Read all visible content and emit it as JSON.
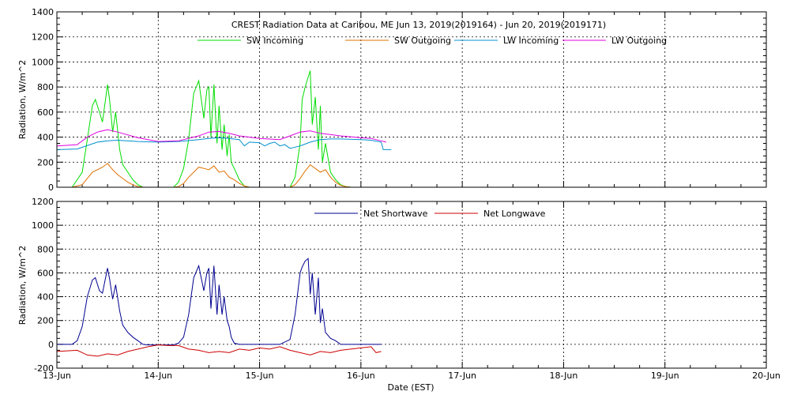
{
  "title": "CREST Radiation Data at Caribou, ME   Jun 13, 2019(2019164) - Jun 20, 2019(2019171)",
  "xlabel": "Date (EST)",
  "x_ticks": [
    "13-Jun",
    "14-Jun",
    "15-Jun",
    "16-Jun",
    "17-Jun",
    "18-Jun",
    "19-Jun",
    "20-Jun"
  ],
  "chart_data": [
    {
      "type": "line",
      "ylabel": "Radiation, W/m^2",
      "xlim": [
        0,
        7
      ],
      "ylim": [
        0,
        1400
      ],
      "y_ticks": [
        "0",
        "200",
        "400",
        "600",
        "800",
        "1000",
        "1200",
        "1400"
      ],
      "grid": true,
      "legend": "top",
      "series": [
        {
          "name": "SW Incoming",
          "color": "#00dd00",
          "x": [
            0.15,
            0.25,
            0.3,
            0.35,
            0.38,
            0.42,
            0.45,
            0.5,
            0.52,
            0.55,
            0.58,
            0.62,
            0.65,
            0.7,
            0.75,
            0.8,
            0.85,
            0.88,
            1.0,
            1.15,
            1.2,
            1.25,
            1.3,
            1.35,
            1.4,
            1.45,
            1.48,
            1.5,
            1.52,
            1.55,
            1.58,
            1.6,
            1.63,
            1.65,
            1.68,
            1.7,
            1.72,
            1.75,
            1.8,
            1.85,
            1.9,
            2.0,
            2.1,
            2.2,
            2.3,
            2.35,
            2.4,
            2.42,
            2.45,
            2.48,
            2.5,
            2.52,
            2.55,
            2.58,
            2.6,
            2.62,
            2.65,
            2.7,
            2.75,
            2.8,
            2.85,
            2.9,
            3.0,
            3.1,
            3.2
          ],
          "y": [
            0,
            120,
            380,
            650,
            700,
            600,
            520,
            820,
            700,
            440,
            600,
            300,
            180,
            120,
            60,
            20,
            0,
            0,
            0,
            0,
            40,
            150,
            380,
            750,
            850,
            550,
            780,
            800,
            400,
            820,
            350,
            650,
            300,
            500,
            250,
            420,
            200,
            150,
            60,
            10,
            0,
            0,
            0,
            0,
            0,
            80,
            350,
            700,
            800,
            880,
            930,
            500,
            720,
            300,
            650,
            200,
            350,
            120,
            60,
            20,
            5,
            0,
            0,
            0,
            0
          ]
        },
        {
          "name": "SW Outgoing",
          "color": "#e07000",
          "x": [
            0.15,
            0.25,
            0.3,
            0.35,
            0.4,
            0.45,
            0.5,
            0.55,
            0.6,
            0.65,
            0.7,
            0.75,
            0.8,
            0.85,
            0.88,
            1.0,
            1.15,
            1.2,
            1.25,
            1.3,
            1.35,
            1.4,
            1.45,
            1.5,
            1.55,
            1.6,
            1.65,
            1.7,
            1.75,
            1.8,
            1.85,
            1.9,
            2.0,
            2.1,
            2.2,
            2.3,
            2.35,
            2.4,
            2.45,
            2.5,
            2.55,
            2.6,
            2.65,
            2.7,
            2.75,
            2.8,
            2.85,
            2.9,
            3.0,
            3.1,
            3.2
          ],
          "y": [
            0,
            20,
            70,
            120,
            140,
            160,
            190,
            140,
            100,
            70,
            40,
            20,
            5,
            0,
            0,
            0,
            0,
            5,
            30,
            80,
            120,
            160,
            150,
            140,
            170,
            120,
            130,
            80,
            60,
            30,
            10,
            0,
            0,
            0,
            0,
            0,
            20,
            70,
            130,
            180,
            150,
            120,
            140,
            80,
            40,
            15,
            5,
            0,
            0,
            0,
            0
          ]
        },
        {
          "name": "LW Incoming",
          "color": "#0090d0",
          "x": [
            0,
            0.2,
            0.4,
            0.5,
            0.6,
            0.8,
            1.0,
            1.2,
            1.4,
            1.5,
            1.6,
            1.7,
            1.8,
            1.85,
            1.9,
            2.0,
            2.05,
            2.1,
            2.15,
            2.2,
            2.25,
            2.3,
            2.35,
            2.4,
            2.5,
            2.6,
            2.7,
            2.8,
            3.0,
            3.1,
            3.2,
            3.22,
            3.3
          ],
          "y": [
            300,
            305,
            360,
            370,
            375,
            365,
            360,
            365,
            380,
            390,
            395,
            390,
            380,
            330,
            360,
            355,
            330,
            350,
            360,
            330,
            340,
            310,
            320,
            330,
            360,
            380,
            385,
            385,
            380,
            375,
            360,
            300,
            300
          ]
        },
        {
          "name": "LW Outgoing",
          "color": "#e000e0",
          "x": [
            0,
            0.2,
            0.3,
            0.4,
            0.5,
            0.6,
            0.8,
            1.0,
            1.2,
            1.4,
            1.5,
            1.6,
            1.7,
            1.8,
            2.0,
            2.2,
            2.3,
            2.4,
            2.5,
            2.6,
            2.8,
            3.0,
            3.1,
            3.2,
            3.25
          ],
          "y": [
            330,
            340,
            400,
            440,
            460,
            440,
            395,
            365,
            370,
            410,
            440,
            445,
            430,
            410,
            390,
            380,
            410,
            440,
            450,
            430,
            410,
            395,
            390,
            370,
            360
          ]
        }
      ]
    },
    {
      "type": "line",
      "ylabel": "Radiation, W/m^2",
      "xlim": [
        0,
        7
      ],
      "ylim": [
        -200,
        1200
      ],
      "y_ticks": [
        "-200",
        "0",
        "200",
        "400",
        "600",
        "800",
        "1000",
        "1200"
      ],
      "grid": true,
      "legend": "top",
      "series": [
        {
          "name": "Net Shortwave",
          "color": "#000090",
          "x": [
            0,
            0.15,
            0.2,
            0.25,
            0.3,
            0.35,
            0.38,
            0.42,
            0.45,
            0.5,
            0.52,
            0.55,
            0.58,
            0.62,
            0.65,
            0.7,
            0.75,
            0.8,
            0.85,
            0.9,
            1.0,
            1.15,
            1.2,
            1.25,
            1.3,
            1.35,
            1.4,
            1.45,
            1.48,
            1.5,
            1.52,
            1.55,
            1.58,
            1.6,
            1.63,
            1.65,
            1.68,
            1.7,
            1.72,
            1.75,
            1.8,
            1.85,
            1.9,
            2.0,
            2.1,
            2.2,
            2.3,
            2.35,
            2.4,
            2.42,
            2.45,
            2.48,
            2.5,
            2.52,
            2.55,
            2.58,
            2.6,
            2.62,
            2.65,
            2.7,
            2.75,
            2.8,
            2.85,
            2.9,
            3.0,
            3.1,
            3.2
          ],
          "y": [
            0,
            0,
            30,
            150,
            400,
            540,
            560,
            450,
            430,
            640,
            550,
            380,
            500,
            280,
            160,
            100,
            60,
            30,
            0,
            -5,
            -5,
            -5,
            10,
            60,
            250,
            560,
            660,
            450,
            600,
            640,
            300,
            660,
            250,
            500,
            250,
            400,
            200,
            150,
            60,
            10,
            0,
            0,
            0,
            0,
            0,
            0,
            40,
            250,
            600,
            650,
            700,
            720,
            420,
            600,
            250,
            560,
            180,
            300,
            100,
            50,
            30,
            0,
            0,
            0,
            0,
            0,
            0
          ]
        },
        {
          "name": "Net Longwave",
          "color": "#cc0000",
          "x": [
            0,
            0.1,
            0.2,
            0.3,
            0.4,
            0.5,
            0.6,
            0.7,
            0.8,
            0.9,
            1.0,
            1.1,
            1.2,
            1.3,
            1.4,
            1.5,
            1.6,
            1.7,
            1.8,
            1.9,
            2.0,
            2.1,
            2.2,
            2.3,
            2.4,
            2.5,
            2.6,
            2.7,
            2.8,
            2.9,
            3.0,
            3.1,
            3.15,
            3.2
          ],
          "y": [
            -60,
            -55,
            -50,
            -90,
            -100,
            -80,
            -90,
            -60,
            -40,
            -20,
            -5,
            -10,
            -10,
            -40,
            -50,
            -70,
            -60,
            -70,
            -40,
            -50,
            -30,
            -40,
            -20,
            -50,
            -70,
            -90,
            -60,
            -70,
            -50,
            -40,
            -30,
            -20,
            -70,
            -60
          ]
        }
      ]
    }
  ]
}
